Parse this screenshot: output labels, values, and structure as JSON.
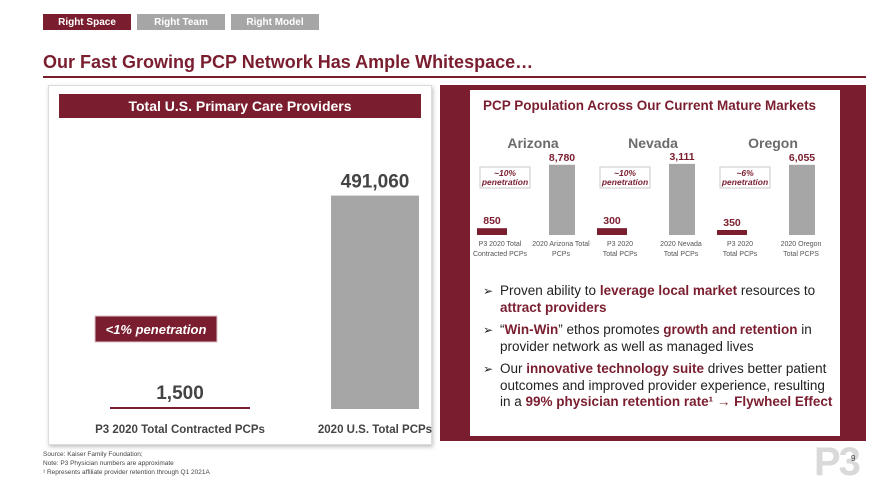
{
  "tabs": [
    {
      "label": "Right Space",
      "active": true
    },
    {
      "label": "Right Team",
      "active": false
    },
    {
      "label": "Right Model",
      "active": false
    }
  ],
  "title": "Our Fast Growing PCP Network Has Ample Whitespace…",
  "colors": {
    "accent": "#7a1e2f",
    "gray_bar": "#a6a6a6"
  },
  "left_panel": {
    "header": "Total U.S. Primary Care Providers",
    "penetration": "<1% penetration",
    "chart_data": {
      "type": "bar",
      "categories": [
        "P3 2020 Total Contracted PCPs",
        "2020 U.S. Total PCPs"
      ],
      "values": [
        1500,
        491060
      ],
      "value_labels": [
        "1,500",
        "491,060"
      ],
      "ylim": [
        0,
        520000
      ]
    }
  },
  "right_panel": {
    "title": "PCP Population Across Our Current Mature Markets",
    "states": [
      {
        "name": "Arizona",
        "penetration_pct": "~10%",
        "penetration_word": "penetration",
        "chart_data": {
          "type": "bar",
          "categories": [
            "P3 2020 Total Contracted PCPs",
            "2020 Arizona Total PCPs"
          ],
          "category_lines": [
            [
              "P3 2020 Total",
              "Contracted PCPs"
            ],
            [
              "2020 Arizona Total",
              "PCPs"
            ]
          ],
          "values": [
            850,
            8780
          ],
          "value_labels": [
            "850",
            "8,780"
          ],
          "ylim": [
            0,
            10000
          ]
        }
      },
      {
        "name": "Nevada",
        "penetration_pct": "~10%",
        "penetration_word": "penetration",
        "chart_data": {
          "type": "bar",
          "categories": [
            "P3 2020 Total PCPs",
            "2020 Nevada Total PCPs"
          ],
          "category_lines": [
            [
              "P3 2020",
              "Total PCPs"
            ],
            [
              "2020 Nevada",
              "Total PCPs"
            ]
          ],
          "values": [
            300,
            3111
          ],
          "value_labels": [
            "300",
            "3,111"
          ],
          "ylim": [
            0,
            3500
          ]
        }
      },
      {
        "name": "Oregon",
        "penetration_pct": "~6%",
        "penetration_word": "penetration",
        "chart_data": {
          "type": "bar",
          "categories": [
            "P3 2020 Total PCPs",
            "2020 Oregon Total PCPS"
          ],
          "category_lines": [
            [
              "P3 2020",
              "Total PCPs"
            ],
            [
              "2020 Oregon",
              "Total PCPS"
            ]
          ],
          "values": [
            350,
            6055
          ],
          "value_labels": [
            "350",
            "6,055"
          ],
          "ylim": [
            0,
            6900
          ]
        }
      }
    ]
  },
  "bullets": [
    {
      "segments": [
        {
          "t": "Proven ability to ",
          "h": false
        },
        {
          "t": "leverage local market",
          "h": true
        },
        {
          "t": " resources to ",
          "h": false
        },
        {
          "t": "attract providers",
          "h": true
        }
      ]
    },
    {
      "segments": [
        {
          "t": "“",
          "h": false
        },
        {
          "t": "Win-Win",
          "h": true
        },
        {
          "t": "” ethos promotes ",
          "h": false
        },
        {
          "t": "growth and retention",
          "h": true
        },
        {
          "t": " in provider network as well as managed lives",
          "h": false
        }
      ]
    },
    {
      "segments": [
        {
          "t": "Our ",
          "h": false
        },
        {
          "t": "innovative technology suite",
          "h": true
        },
        {
          "t": " drives better patient outcomes and improved provider experience, resulting in a ",
          "h": false
        },
        {
          "t": "99% physician retention rate¹ → Flywheel Effect",
          "h": true
        }
      ]
    }
  ],
  "footnotes": [
    "Source: Kaiser Family Foundation;",
    "Note: P3 Physician numbers are approximate",
    "¹ Represents affiliate provider retention through Q1 2021A"
  ],
  "page_number": "9",
  "logo_text": "P3",
  "icons": {
    "bullet": "arrow-right-icon"
  }
}
